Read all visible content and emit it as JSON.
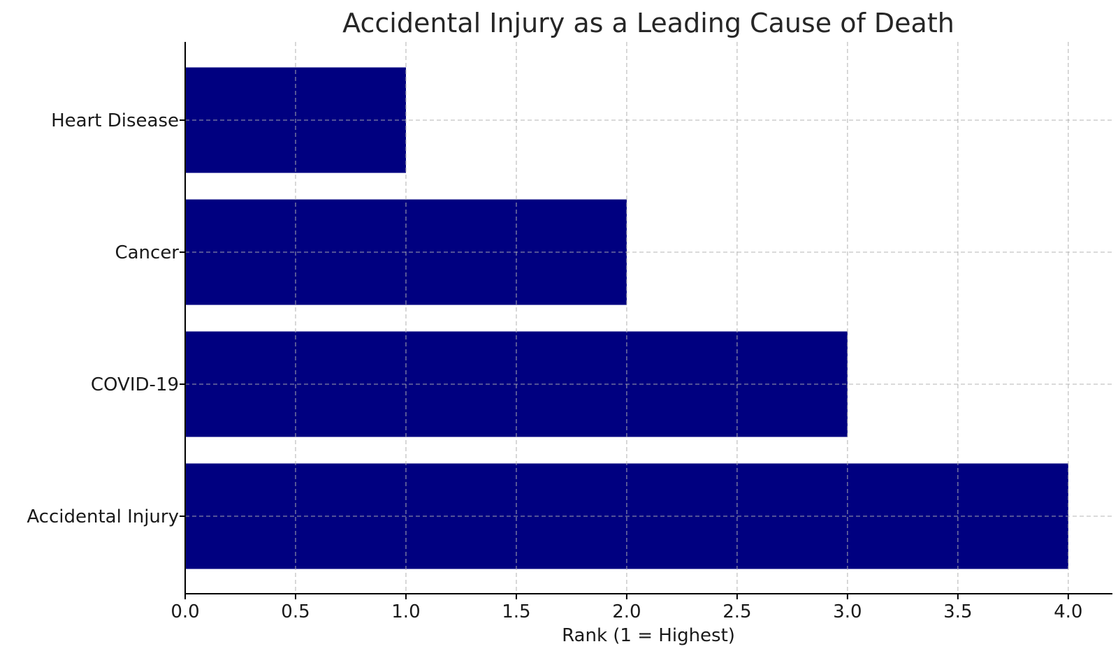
{
  "chart_data": {
    "type": "bar",
    "orientation": "horizontal",
    "title": "Accidental Injury as a Leading Cause of Death",
    "xlabel": "Rank (1 = Highest)",
    "ylabel": "",
    "categories": [
      "Heart Disease",
      "Cancer",
      "COVID-19",
      "Accidental Injury"
    ],
    "values": [
      1,
      2,
      3,
      4
    ],
    "xlim": [
      0,
      4.2
    ],
    "xticks": [
      "0.0",
      "0.5",
      "1.0",
      "1.5",
      "2.0",
      "2.5",
      "3.0",
      "3.5",
      "4.0"
    ],
    "grid": true,
    "bar_color": "#000080",
    "legend": "none"
  }
}
